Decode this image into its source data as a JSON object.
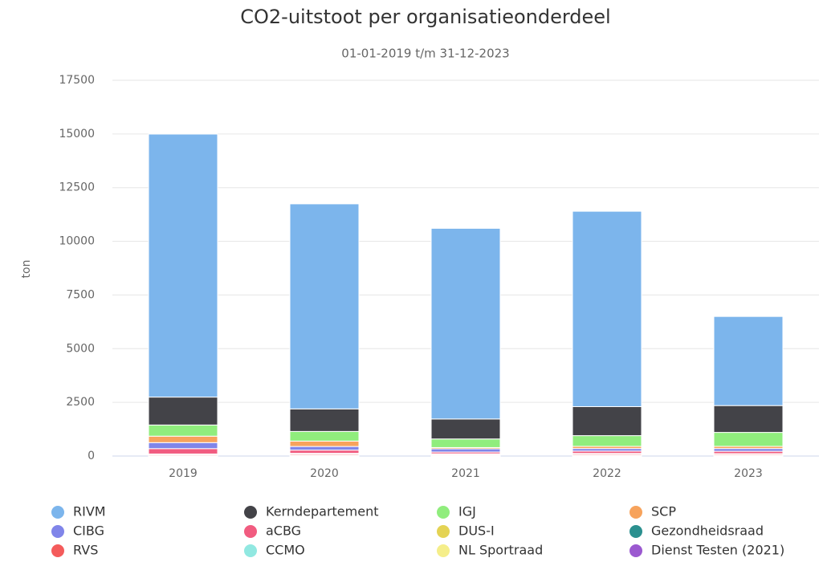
{
  "chart_data": {
    "type": "stacked_bar",
    "title": "CO2-uitstoot per organisatieonderdeel",
    "subtitle": "01-01-2019 t/m 31-12-2023",
    "y_label": "ton",
    "categories": [
      "2019",
      "2020",
      "2021",
      "2022",
      "2023"
    ],
    "ylim": [
      0,
      17500
    ],
    "yticks": [
      0,
      2500,
      5000,
      7500,
      10000,
      12500,
      15000,
      17500
    ],
    "grid": true,
    "series": [
      {
        "name": "RIVM",
        "color": "#7cb5ec",
        "values": [
          12250,
          9550,
          8880,
          9100,
          4150
        ]
      },
      {
        "name": "Kerndepartement",
        "color": "#434348",
        "values": [
          1300,
          1050,
          930,
          1350,
          1250
        ]
      },
      {
        "name": "IGJ",
        "color": "#90ed7d",
        "values": [
          520,
          450,
          400,
          500,
          650
        ]
      },
      {
        "name": "SCP",
        "color": "#f7a35c",
        "values": [
          300,
          250,
          60,
          100,
          100
        ]
      },
      {
        "name": "CIBG",
        "color": "#8085e9",
        "values": [
          280,
          170,
          150,
          120,
          130
        ]
      },
      {
        "name": "aCBG",
        "color": "#f15c80",
        "values": [
          250,
          150,
          80,
          110,
          110
        ]
      },
      {
        "name": "DUS-I",
        "color": "#e4d354",
        "values": [
          10,
          10,
          10,
          10,
          10
        ]
      },
      {
        "name": "Gezondheidsraad",
        "color": "#2b908f",
        "values": [
          20,
          20,
          20,
          20,
          20
        ]
      },
      {
        "name": "RVS",
        "color": "#f45b5b",
        "values": [
          50,
          50,
          40,
          50,
          50
        ]
      },
      {
        "name": "CCMO",
        "color": "#91e8e1",
        "values": [
          10,
          10,
          10,
          10,
          10
        ]
      },
      {
        "name": "NL Sportraad",
        "color": "#f5ee8a",
        "values": [
          5,
          5,
          5,
          5,
          5
        ]
      },
      {
        "name": "Dienst Testen (2021)",
        "color": "#9b59d0",
        "values": [
          0,
          30,
          20,
          25,
          15
        ]
      }
    ]
  }
}
